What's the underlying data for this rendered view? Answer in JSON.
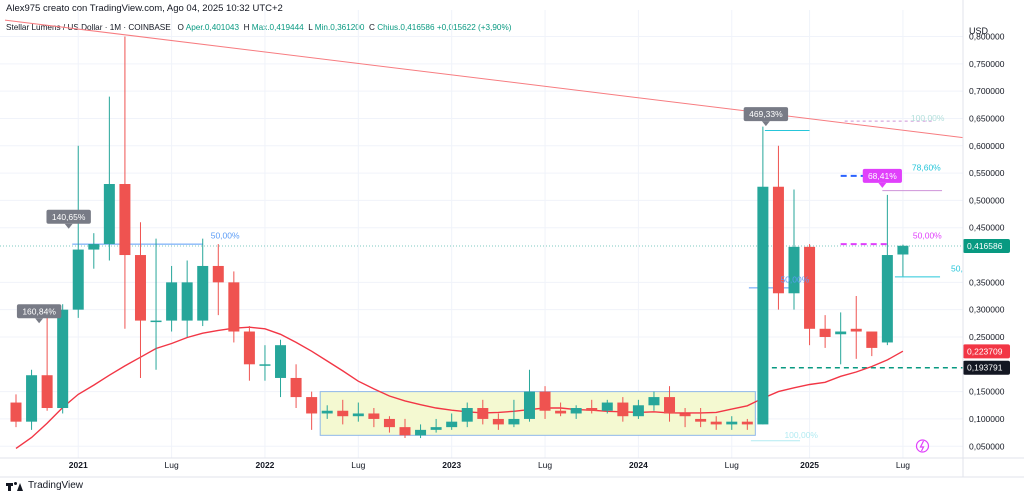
{
  "header": {
    "author": "Alex975 creato con TradingView.com, Ago 04, 2025 10:32 UTC+2"
  },
  "symbol": {
    "name": "Stellar Lumens / US Dollar · 1M · COINBASE",
    "open_label": "O",
    "open": "Aper.0,401043",
    "high_label": "H",
    "high": "Max.0,419444",
    "low_label": "L",
    "low": "Min.0,361200",
    "close_label": "C",
    "close": "Chius.0,416586",
    "change": "+0,015622 (+3,90%)"
  },
  "axis": {
    "currency": "USD",
    "price_ticks": [
      "0,800000",
      "0,750000",
      "0,700000",
      "0,650000",
      "0,600000",
      "0,550000",
      "0,500000",
      "0,450000",
      "0,350000",
      "0,300000",
      "0,250000",
      "0,150000",
      "0,100000",
      "0,050000"
    ],
    "time_ticks": [
      "2021",
      "Lug",
      "2022",
      "Lug",
      "2023",
      "Lug",
      "2024",
      "Lug",
      "2025",
      "Lug"
    ],
    "price_badges": [
      {
        "text": "0,416586",
        "color": "#089981",
        "value": 0.416586
      },
      {
        "text": "0,223709",
        "color": "#f23645",
        "value": 0.223709
      },
      {
        "text": "0,193791",
        "color": "#131722",
        "value": 0.193791
      }
    ]
  },
  "colors": {
    "up": "#26a69a",
    "down": "#ef5350",
    "ma": "#f23645",
    "trendline": "#f77c80",
    "fib_blue": "#5b9cf6",
    "fib_cyan": "#26c6da",
    "fib_pink": "#e040fb",
    "box_fill": "#f4f9d1",
    "box_border": "#8fb8e8",
    "teal_dash": "#089981",
    "tag_gray": "#787b86",
    "tag_magenta": "#e040fb"
  },
  "annotations": {
    "tags": [
      {
        "text": "160,84%",
        "color": "#787b86"
      },
      {
        "text": "140,65%",
        "color": "#787b86"
      },
      {
        "text": "469,33%",
        "color": "#787b86"
      },
      {
        "text": "68,41%",
        "color": "#e040fb"
      }
    ],
    "fib_labels": [
      "50,00%",
      "100,00%",
      "78,60%",
      "50,00%",
      "50,00%",
      "100,00%",
      "50,"
    ]
  },
  "chart_data": {
    "type": "candlestick",
    "title": "",
    "xlabel": "",
    "ylabel": "",
    "ylim": [
      0.03,
      0.83
    ],
    "series": [
      {
        "name": "",
        "values": [
          [
            0.13,
            0.095,
            0.145,
            0.085
          ],
          [
            0.095,
            0.18,
            0.19,
            0.08
          ],
          [
            0.18,
            0.12,
            0.29,
            0.115
          ],
          [
            0.12,
            0.3,
            0.31,
            0.11
          ],
          [
            0.3,
            0.41,
            0.6,
            0.285
          ],
          [
            0.41,
            0.42,
            0.44,
            0.375
          ],
          [
            0.42,
            0.53,
            0.69,
            0.39
          ],
          [
            0.53,
            0.4,
            0.8,
            0.265
          ],
          [
            0.4,
            0.28,
            0.46,
            0.175
          ],
          [
            0.28,
            0.28,
            0.43,
            0.19
          ],
          [
            0.28,
            0.35,
            0.38,
            0.26
          ],
          [
            0.28,
            0.35,
            0.39,
            0.25
          ],
          [
            0.28,
            0.38,
            0.43,
            0.27
          ],
          [
            0.38,
            0.35,
            0.42,
            0.29
          ],
          [
            0.35,
            0.26,
            0.37,
            0.24
          ],
          [
            0.26,
            0.2,
            0.27,
            0.17
          ],
          [
            0.2,
            0.2,
            0.235,
            0.17
          ],
          [
            0.175,
            0.235,
            0.245,
            0.14
          ],
          [
            0.175,
            0.14,
            0.2,
            0.12
          ],
          [
            0.14,
            0.11,
            0.15,
            0.08
          ],
          [
            0.11,
            0.115,
            0.125,
            0.1
          ],
          [
            0.115,
            0.105,
            0.135,
            0.09
          ],
          [
            0.105,
            0.11,
            0.13,
            0.095
          ],
          [
            0.11,
            0.1,
            0.12,
            0.085
          ],
          [
            0.1,
            0.085,
            0.105,
            0.075
          ],
          [
            0.085,
            0.07,
            0.1,
            0.065
          ],
          [
            0.07,
            0.08,
            0.09,
            0.065
          ],
          [
            0.08,
            0.085,
            0.1,
            0.075
          ],
          [
            0.085,
            0.095,
            0.11,
            0.08
          ],
          [
            0.095,
            0.12,
            0.13,
            0.085
          ],
          [
            0.12,
            0.1,
            0.135,
            0.09
          ],
          [
            0.1,
            0.09,
            0.11,
            0.08
          ],
          [
            0.09,
            0.1,
            0.135,
            0.085
          ],
          [
            0.1,
            0.15,
            0.19,
            0.095
          ],
          [
            0.15,
            0.115,
            0.16,
            0.1
          ],
          [
            0.115,
            0.11,
            0.13,
            0.105
          ],
          [
            0.11,
            0.12,
            0.125,
            0.1
          ],
          [
            0.12,
            0.115,
            0.135,
            0.11
          ],
          [
            0.115,
            0.13,
            0.135,
            0.11
          ],
          [
            0.13,
            0.105,
            0.14,
            0.095
          ],
          [
            0.105,
            0.125,
            0.135,
            0.1
          ],
          [
            0.125,
            0.14,
            0.15,
            0.115
          ],
          [
            0.14,
            0.11,
            0.16,
            0.095
          ],
          [
            0.11,
            0.105,
            0.12,
            0.085
          ],
          [
            0.1,
            0.095,
            0.12,
            0.085
          ],
          [
            0.095,
            0.09,
            0.105,
            0.08
          ],
          [
            0.09,
            0.095,
            0.105,
            0.08
          ],
          [
            0.095,
            0.09,
            0.1,
            0.08
          ],
          [
            0.09,
            0.525,
            0.635,
            0.09
          ],
          [
            0.525,
            0.33,
            0.6,
            0.3
          ],
          [
            0.33,
            0.415,
            0.52,
            0.3
          ],
          [
            0.415,
            0.265,
            0.42,
            0.235
          ],
          [
            0.265,
            0.25,
            0.29,
            0.23
          ],
          [
            0.255,
            0.26,
            0.295,
            0.2
          ],
          [
            0.265,
            0.26,
            0.325,
            0.21
          ],
          [
            0.26,
            0.23,
            0.26,
            0.215
          ],
          [
            0.24,
            0.4,
            0.51,
            0.235
          ],
          [
            0.401,
            0.417,
            0.419,
            0.361
          ]
        ]
      }
    ],
    "moving_average": [
      0.046,
      0.066,
      0.092,
      0.121,
      0.145,
      0.162,
      0.18,
      0.197,
      0.213,
      0.229,
      0.238,
      0.249,
      0.257,
      0.262,
      0.266,
      0.268,
      0.265,
      0.255,
      0.24,
      0.224,
      0.206,
      0.188,
      0.169,
      0.155,
      0.142,
      0.133,
      0.126,
      0.12,
      0.116,
      0.113,
      0.111,
      0.112,
      0.114,
      0.117,
      0.12,
      0.12,
      0.117,
      0.116,
      0.114,
      0.113,
      0.112,
      0.113,
      0.111,
      0.111,
      0.111,
      0.112,
      0.118,
      0.124,
      0.138,
      0.15,
      0.157,
      0.163,
      0.167,
      0.178,
      0.186,
      0.196,
      0.208,
      0.224
    ]
  }
}
